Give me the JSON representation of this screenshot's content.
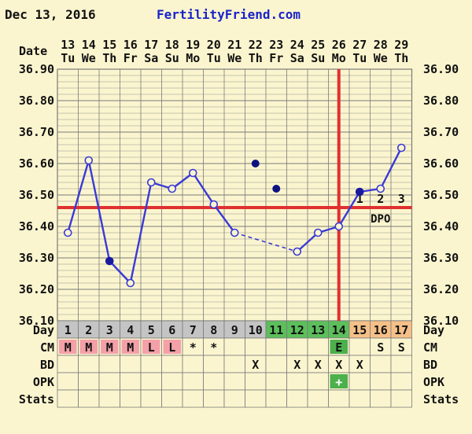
{
  "header": {
    "date_text": "Dec 13, 2016",
    "brand": "FertilityFriend.com"
  },
  "labels": {
    "date": "Date",
    "day": "Day",
    "cm": "CM",
    "bd": "BD",
    "opk": "OPK",
    "stats": "Stats",
    "dpo": "DPO"
  },
  "chart_data": {
    "type": "line",
    "dates": [
      "13",
      "14",
      "15",
      "16",
      "17",
      "18",
      "19",
      "20",
      "21",
      "22",
      "23",
      "24",
      "25",
      "26",
      "27",
      "28",
      "29"
    ],
    "weekdays": [
      "Tu",
      "We",
      "Th",
      "Fr",
      "Sa",
      "Su",
      "Mo",
      "Tu",
      "We",
      "Th",
      "Fr",
      "Sa",
      "Su",
      "Mo",
      "Tu",
      "We",
      "Th"
    ],
    "cycle_days": [
      "1",
      "2",
      "3",
      "4",
      "5",
      "6",
      "7",
      "8",
      "9",
      "10",
      "11",
      "12",
      "13",
      "14",
      "15",
      "16",
      "17"
    ],
    "day_phase": [
      "gray",
      "gray",
      "gray",
      "gray",
      "gray",
      "gray",
      "gray",
      "gray",
      "gray",
      "gray",
      "green",
      "green",
      "green",
      "green",
      "orange",
      "orange",
      "orange"
    ],
    "temps": [
      36.38,
      36.61,
      36.29,
      36.22,
      36.54,
      36.52,
      36.57,
      36.47,
      36.38,
      null,
      null,
      36.32,
      36.38,
      36.4,
      36.51,
      36.52,
      36.65
    ],
    "discarded_temps": [
      {
        "index": 9,
        "value": 36.6
      },
      {
        "index": 10,
        "value": 36.52
      }
    ],
    "filled_points": [
      2,
      14
    ],
    "ylim": [
      36.1,
      36.9
    ],
    "yticks": [
      "36.10",
      "36.20",
      "36.30",
      "36.40",
      "36.50",
      "36.60",
      "36.70",
      "36.80",
      "36.90"
    ],
    "coverline": 36.46,
    "ovulation_index": 13,
    "dpo_labels": [
      "1",
      "2",
      "3"
    ],
    "cm": [
      "M",
      "M",
      "M",
      "M",
      "L",
      "L",
      "*",
      "*",
      "",
      "",
      "",
      "",
      "",
      "E",
      "",
      "S",
      "S"
    ],
    "cm_colored": [
      true,
      true,
      true,
      true,
      true,
      true,
      false,
      false,
      false,
      false,
      false,
      false,
      false,
      true,
      false,
      false,
      false
    ],
    "bd": [
      "",
      "",
      "",
      "",
      "",
      "",
      "",
      "",
      "",
      "X",
      "",
      "X",
      "X",
      "X",
      "X",
      "",
      ""
    ],
    "opk": [
      "",
      "",
      "",
      "",
      "",
      "",
      "",
      "",
      "",
      "",
      "",
      "",
      "",
      "+",
      "",
      "",
      ""
    ],
    "colors": {
      "line": "#3a3ad6",
      "coverline": "#e03030",
      "grid": "#7a7a7a",
      "cm_fill": "#f4a0a8",
      "cm_egg": "#4cb04c",
      "phase_gray": "#c4c4c4",
      "phase_green": "#5cbf5c",
      "phase_orange": "#f5c088",
      "row_bg": "#fbf5cf"
    }
  }
}
